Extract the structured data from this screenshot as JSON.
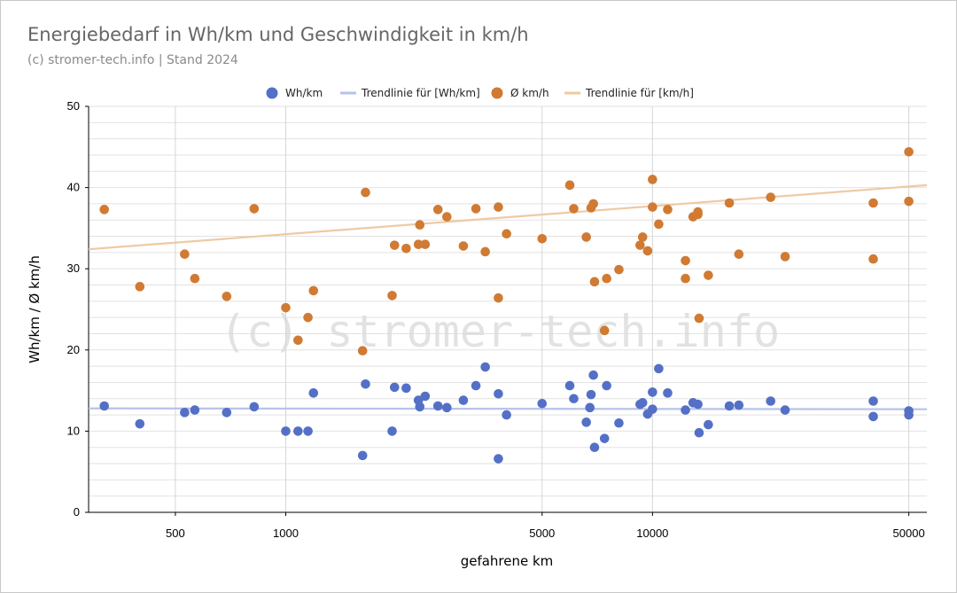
{
  "header": {
    "title": "Energiebedarf in Wh/km und Geschwindigkeit in km/h",
    "subtitle": "(c) stromer-tech.info | Stand 2024"
  },
  "watermark": "(c) stromer-tech.info",
  "colors": {
    "wh": "#5470c6",
    "kmh": "#d07a33",
    "wh_trend": "#b7c3e8",
    "kmh_trend": "#efc9a4",
    "grid": "#e2e2e2",
    "grid_major": "#d6d6d6"
  },
  "chart_data": {
    "type": "scatter",
    "xscale": "log",
    "xlabel": "gefahrene km",
    "ylabel": "Wh/km / Ø km/h",
    "xlim": [
      290,
      56000
    ],
    "ylim": [
      0,
      50
    ],
    "x_ticks": [
      500,
      1000,
      5000,
      10000,
      50000
    ],
    "y_ticks": [
      0,
      10,
      20,
      30,
      40,
      50
    ],
    "grid": true,
    "legend_position": "top",
    "series": [
      {
        "name": "Wh/km",
        "kind": "points",
        "points": [
          [
            320,
            13.1
          ],
          [
            400,
            10.9
          ],
          [
            530,
            12.3
          ],
          [
            565,
            12.6
          ],
          [
            690,
            12.3
          ],
          [
            820,
            13.0
          ],
          [
            1000,
            10.0
          ],
          [
            1080,
            10.0
          ],
          [
            1150,
            10.0
          ],
          [
            1190,
            14.7
          ],
          [
            1620,
            7.0
          ],
          [
            1650,
            15.8
          ],
          [
            1950,
            10.0
          ],
          [
            1980,
            15.4
          ],
          [
            2130,
            15.3
          ],
          [
            2300,
            13.8
          ],
          [
            2320,
            13.0
          ],
          [
            2400,
            14.3
          ],
          [
            2600,
            13.1
          ],
          [
            2750,
            12.9
          ],
          [
            3050,
            13.8
          ],
          [
            3300,
            15.6
          ],
          [
            3500,
            17.9
          ],
          [
            3800,
            6.6
          ],
          [
            3800,
            14.6
          ],
          [
            4000,
            12.0
          ],
          [
            5000,
            13.4
          ],
          [
            5950,
            15.6
          ],
          [
            6100,
            14.0
          ],
          [
            6600,
            11.1
          ],
          [
            6800,
            14.5
          ],
          [
            6750,
            12.9
          ],
          [
            6900,
            16.9
          ],
          [
            6950,
            8.0
          ],
          [
            7400,
            9.1
          ],
          [
            7500,
            15.6
          ],
          [
            8100,
            11.0
          ],
          [
            9250,
            13.3
          ],
          [
            9400,
            13.5
          ],
          [
            9700,
            12.1
          ],
          [
            10000,
            12.7
          ],
          [
            10000,
            14.8
          ],
          [
            10400,
            17.7
          ],
          [
            11000,
            14.7
          ],
          [
            12300,
            12.6
          ],
          [
            12900,
            13.5
          ],
          [
            13300,
            13.3
          ],
          [
            13400,
            9.8
          ],
          [
            14200,
            10.8
          ],
          [
            16200,
            13.1
          ],
          [
            17200,
            13.2
          ],
          [
            21000,
            13.7
          ],
          [
            23000,
            12.6
          ],
          [
            40000,
            11.8
          ],
          [
            40000,
            13.7
          ],
          [
            50000,
            12.0
          ],
          [
            50000,
            12.5
          ]
        ]
      },
      {
        "name": "Trendlinie für [Wh/km]",
        "kind": "line",
        "points": [
          [
            290,
            12.8
          ],
          [
            56000,
            12.7
          ]
        ]
      },
      {
        "name": "Ø km/h",
        "kind": "points",
        "points": [
          [
            320,
            37.3
          ],
          [
            400,
            27.8
          ],
          [
            530,
            31.8
          ],
          [
            565,
            28.8
          ],
          [
            690,
            26.6
          ],
          [
            820,
            37.4
          ],
          [
            1000,
            25.2
          ],
          [
            1080,
            21.2
          ],
          [
            1150,
            24.0
          ],
          [
            1190,
            27.3
          ],
          [
            1620,
            19.9
          ],
          [
            1650,
            39.4
          ],
          [
            1950,
            26.7
          ],
          [
            1980,
            32.9
          ],
          [
            2130,
            32.5
          ],
          [
            2300,
            33.0
          ],
          [
            2320,
            35.4
          ],
          [
            2400,
            33.0
          ],
          [
            2600,
            37.3
          ],
          [
            2750,
            36.4
          ],
          [
            3050,
            32.8
          ],
          [
            3300,
            37.4
          ],
          [
            3500,
            32.1
          ],
          [
            3800,
            26.4
          ],
          [
            3800,
            37.6
          ],
          [
            4000,
            34.3
          ],
          [
            5000,
            33.7
          ],
          [
            5950,
            40.3
          ],
          [
            6100,
            37.4
          ],
          [
            6600,
            33.9
          ],
          [
            6800,
            37.5
          ],
          [
            6900,
            38.0
          ],
          [
            6950,
            28.4
          ],
          [
            7400,
            22.4
          ],
          [
            7500,
            28.8
          ],
          [
            8100,
            29.9
          ],
          [
            9250,
            32.9
          ],
          [
            9400,
            33.9
          ],
          [
            9700,
            32.2
          ],
          [
            10000,
            37.6
          ],
          [
            10000,
            41.0
          ],
          [
            10400,
            35.5
          ],
          [
            11000,
            37.3
          ],
          [
            12300,
            31.0
          ],
          [
            12300,
            28.8
          ],
          [
            12900,
            36.4
          ],
          [
            13300,
            37.0
          ],
          [
            13300,
            36.7
          ],
          [
            13400,
            23.9
          ],
          [
            14200,
            29.2
          ],
          [
            16200,
            38.1
          ],
          [
            17200,
            31.8
          ],
          [
            21000,
            38.8
          ],
          [
            23000,
            31.5
          ],
          [
            40000,
            38.1
          ],
          [
            40000,
            31.2
          ],
          [
            50000,
            44.4
          ],
          [
            50000,
            38.3
          ]
        ]
      },
      {
        "name": "Trendlinie für [km/h]",
        "kind": "line",
        "points": [
          [
            290,
            32.4
          ],
          [
            56000,
            40.3
          ]
        ]
      }
    ]
  }
}
